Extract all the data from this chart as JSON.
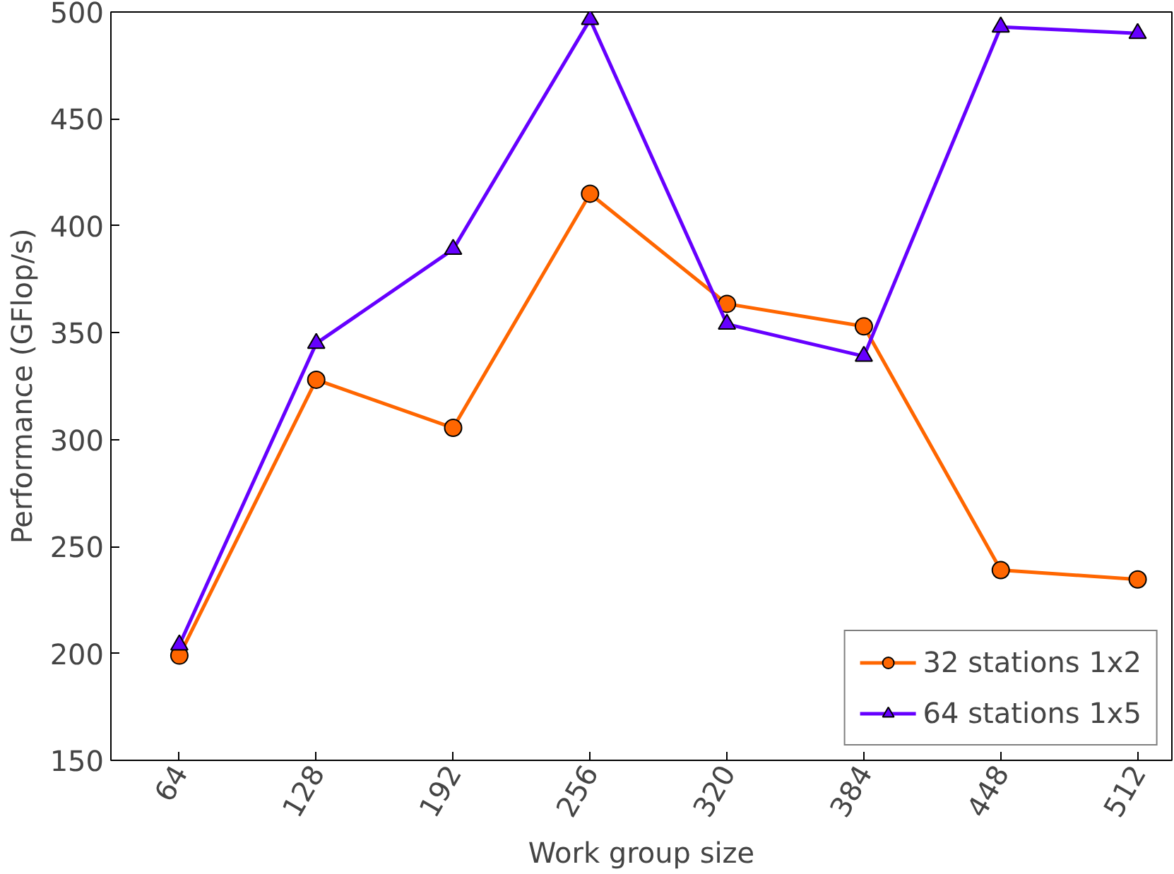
{
  "chart_data": {
    "type": "line",
    "xlabel": "Work group size",
    "ylabel": "Performance (GFlop/s)",
    "x": [
      64,
      128,
      192,
      256,
      320,
      384,
      448,
      512
    ],
    "xlim": [
      32,
      528
    ],
    "xticks": [
      64,
      128,
      192,
      256,
      320,
      384,
      448,
      512
    ],
    "ylim": [
      150,
      500
    ],
    "yticks": [
      150,
      200,
      250,
      300,
      350,
      400,
      450,
      500
    ],
    "grid": false,
    "legend": "bottom right",
    "line_style": "solid",
    "series": [
      {
        "name": "32 stations 1x2",
        "color": "#ff6600",
        "marker": "circle",
        "values": [
          199,
          328,
          305.5,
          415,
          363.5,
          353,
          239,
          234.6
        ]
      },
      {
        "name": "64 stations 1x5",
        "color": "#6600ff",
        "marker": "triangle",
        "values": [
          204,
          345,
          389,
          496.5,
          354,
          339,
          493,
          490
        ]
      }
    ]
  }
}
